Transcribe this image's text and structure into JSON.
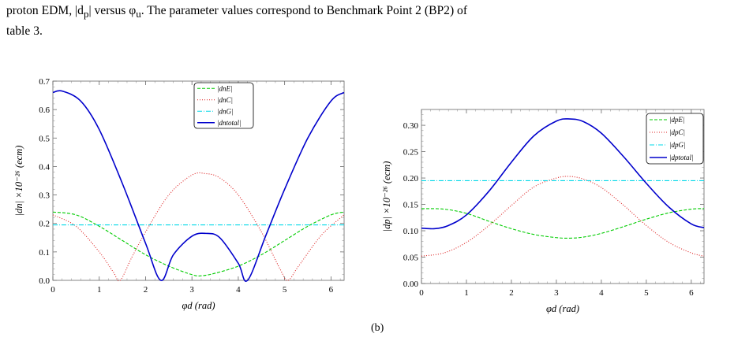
{
  "caption": {
    "line1": "proton EDM, |d",
    "line1_sub": "p",
    "line1_mid": "| versus φ",
    "line1_sub2": "u",
    "line1_end": ".  The parameter values correspond to Benchmark Point 2 (BP2) of",
    "line2": "table 3."
  },
  "subcaption": "(b)",
  "chart_data": [
    {
      "type": "line",
      "xlabel": "φd (rad)",
      "ylabel": "|dn| ×10⁻²⁶ (ecm)",
      "xlim": [
        0,
        6.2832
      ],
      "ylim": [
        0,
        0.7
      ],
      "xticks": [
        "0",
        "1",
        "2",
        "3",
        "4",
        "5",
        "6"
      ],
      "yticks": [
        "0.0",
        "0.1",
        "0.2",
        "0.3",
        "0.4",
        "0.5",
        "0.6",
        "0.7"
      ],
      "legend_position": "top-right",
      "series": [
        {
          "name": "|dnE|",
          "color": "#00cc00",
          "dash": "4,2",
          "x": [
            0,
            0.5,
            1.0,
            1.5,
            2.0,
            2.5,
            3.0,
            3.2,
            3.5,
            4.0,
            4.5,
            5.0,
            5.5,
            6.0,
            6.2832
          ],
          "y": [
            0.24,
            0.23,
            0.19,
            0.14,
            0.09,
            0.05,
            0.02,
            0.016,
            0.025,
            0.05,
            0.09,
            0.14,
            0.19,
            0.23,
            0.24
          ]
        },
        {
          "name": "|dnC|",
          "color": "#dd2020",
          "dash": "1,2",
          "x": [
            0,
            0.5,
            1.0,
            1.3,
            1.45,
            1.7,
            2.0,
            2.5,
            3.0,
            3.3,
            3.6,
            4.0,
            4.5,
            4.9,
            5.07,
            5.3,
            5.8,
            6.2832
          ],
          "y": [
            0.23,
            0.19,
            0.1,
            0.03,
            0.0,
            0.08,
            0.17,
            0.3,
            0.37,
            0.375,
            0.36,
            0.3,
            0.17,
            0.04,
            0.0,
            0.05,
            0.16,
            0.23
          ]
        },
        {
          "name": "|dnG|",
          "color": "#00d8e8",
          "dash": "6,2,1,2",
          "x": [
            0,
            6.2832
          ],
          "y": [
            0.195,
            0.195
          ]
        },
        {
          "name": "|dntotal|",
          "color": "#0000cc",
          "dash": "",
          "x": [
            0,
            0.2,
            0.6,
            1.0,
            1.5,
            2.0,
            2.33,
            2.6,
            3.0,
            3.3,
            3.6,
            4.0,
            4.2,
            4.6,
            5.0,
            5.5,
            6.0,
            6.2832
          ],
          "y": [
            0.66,
            0.665,
            0.63,
            0.53,
            0.34,
            0.13,
            0.0,
            0.09,
            0.155,
            0.165,
            0.15,
            0.06,
            0.0,
            0.16,
            0.32,
            0.5,
            0.63,
            0.66
          ]
        }
      ]
    },
    {
      "type": "line",
      "xlabel": "φd (rad)",
      "ylabel": "|dp| ×10⁻²⁶ (ecm)",
      "xlim": [
        0,
        6.2832
      ],
      "ylim": [
        0,
        0.33
      ],
      "xticks": [
        "0",
        "1",
        "2",
        "3",
        "4",
        "5",
        "6"
      ],
      "yticks": [
        "0.00",
        "0.05",
        "0.10",
        "0.15",
        "0.20",
        "0.25",
        "0.30"
      ],
      "legend_position": "top-right",
      "series": [
        {
          "name": "|dpE|",
          "color": "#00cc00",
          "dash": "4,2",
          "x": [
            0,
            0.5,
            1.0,
            1.5,
            2.0,
            2.5,
            3.0,
            3.3,
            3.6,
            4.0,
            4.5,
            5.0,
            5.5,
            6.0,
            6.2832
          ],
          "y": [
            0.142,
            0.141,
            0.133,
            0.118,
            0.104,
            0.093,
            0.087,
            0.086,
            0.088,
            0.095,
            0.108,
            0.122,
            0.134,
            0.141,
            0.142
          ]
        },
        {
          "name": "|dpC|",
          "color": "#dd2020",
          "dash": "1,2",
          "x": [
            0,
            0.5,
            1.0,
            1.5,
            2.0,
            2.5,
            3.0,
            3.3,
            3.6,
            4.0,
            4.5,
            5.0,
            5.5,
            6.0,
            6.2832
          ],
          "y": [
            0.052,
            0.058,
            0.078,
            0.11,
            0.148,
            0.183,
            0.2,
            0.203,
            0.198,
            0.182,
            0.148,
            0.11,
            0.078,
            0.058,
            0.052
          ]
        },
        {
          "name": "|dpG|",
          "color": "#00d8e8",
          "dash": "6,2,1,2",
          "x": [
            0,
            6.2832
          ],
          "y": [
            0.195,
            0.195
          ]
        },
        {
          "name": "|dptotal|",
          "color": "#0000cc",
          "dash": "",
          "x": [
            0,
            0.3,
            0.6,
            1.0,
            1.5,
            2.0,
            2.5,
            3.0,
            3.3,
            3.6,
            4.0,
            4.5,
            5.0,
            5.5,
            6.0,
            6.2832
          ],
          "y": [
            0.105,
            0.104,
            0.11,
            0.13,
            0.175,
            0.23,
            0.28,
            0.308,
            0.312,
            0.307,
            0.285,
            0.24,
            0.19,
            0.145,
            0.113,
            0.106
          ]
        }
      ]
    }
  ]
}
